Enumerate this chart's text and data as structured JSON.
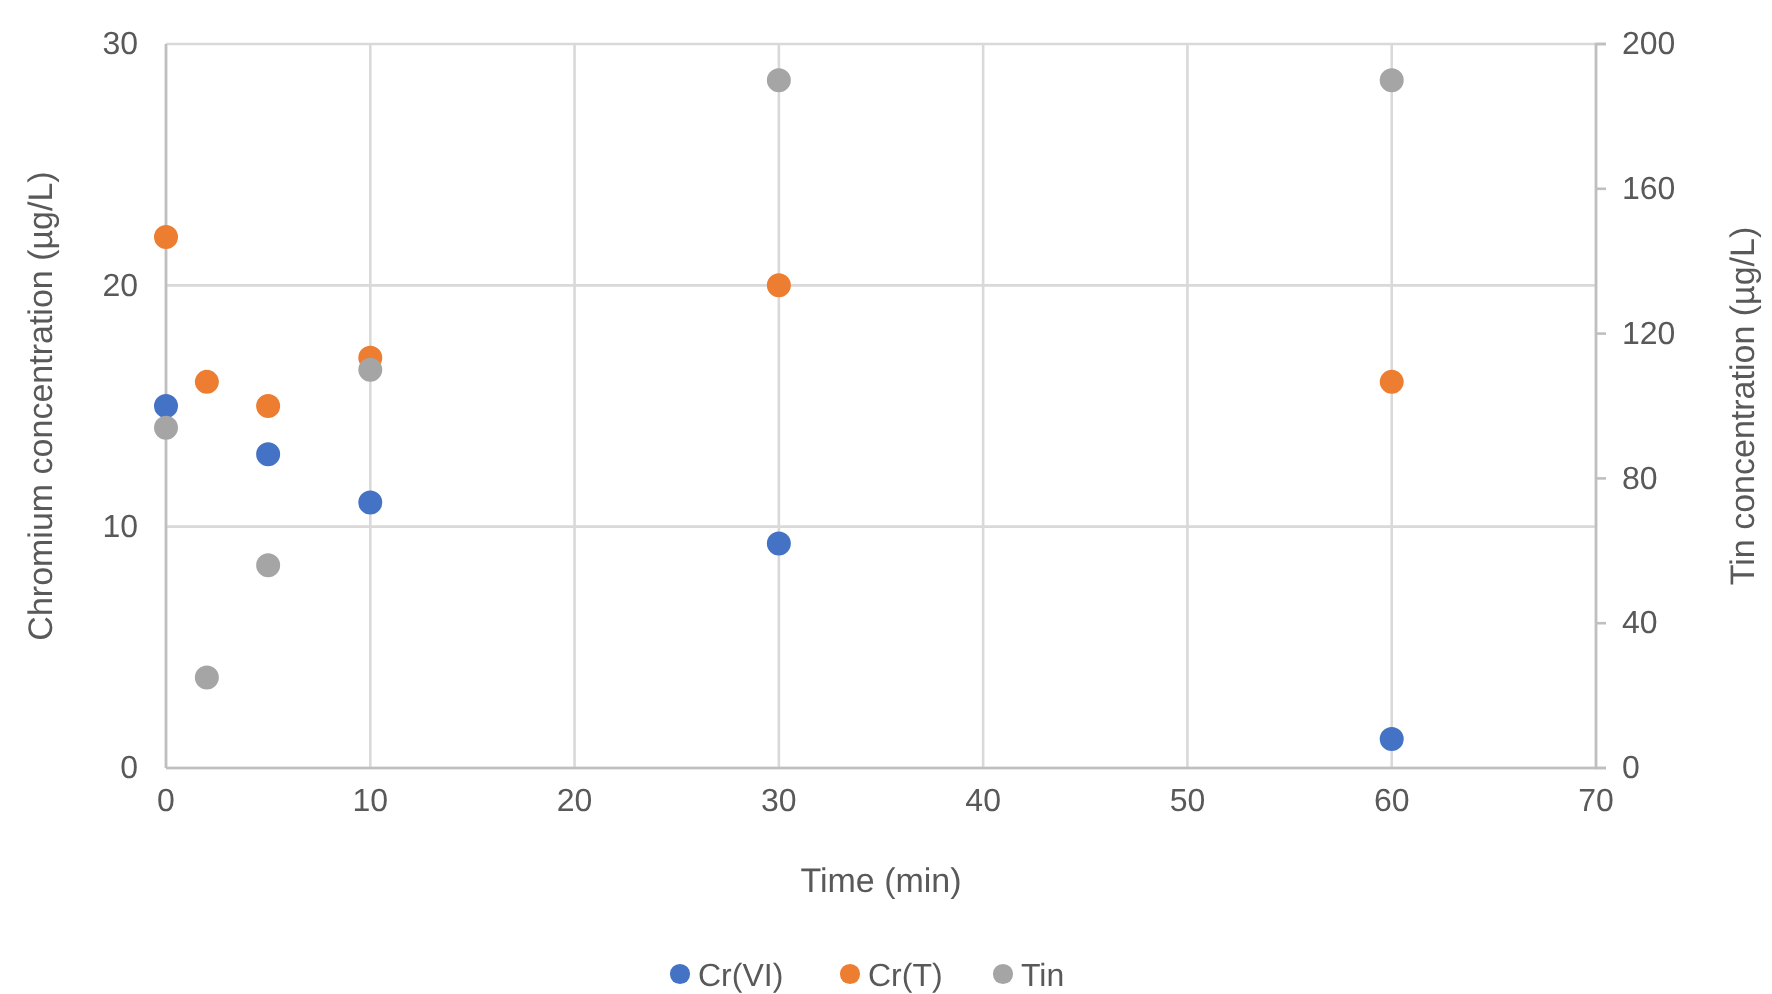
{
  "chart_data": {
    "type": "scatter",
    "xlabel": "Time (min)",
    "ylabel": "Chromium concentration (µg/L)",
    "y2label": "Tin concentration  (µg/L)",
    "xlim": [
      0,
      70
    ],
    "xticks": [
      0,
      10,
      20,
      30,
      40,
      50,
      60,
      70
    ],
    "ylim": [
      0,
      30
    ],
    "yticks": [
      0,
      10,
      20,
      30
    ],
    "y2lim": [
      0,
      200
    ],
    "y2ticks": [
      0,
      40,
      80,
      120,
      160,
      200
    ],
    "grid": true,
    "legend": "bottom",
    "marker": "circle",
    "series": [
      {
        "name": "Cr(VI)",
        "color": "#4472c4",
        "x": [
          0,
          2,
          5,
          10,
          30,
          60
        ],
        "values": [
          15,
          null,
          13,
          11,
          9.3,
          1.2
        ]
      },
      {
        "name": "Cr(T)",
        "color": "#ed7d31",
        "x": [
          0,
          2,
          5,
          10,
          30,
          60
        ],
        "values": [
          22,
          16,
          15,
          17,
          20,
          16
        ]
      },
      {
        "name": "Tin",
        "color": "#a5a5a5",
        "axis": "y2",
        "x": [
          0,
          2,
          5,
          10,
          30,
          60
        ],
        "values": [
          94,
          25,
          56,
          110,
          190,
          190
        ]
      }
    ]
  }
}
